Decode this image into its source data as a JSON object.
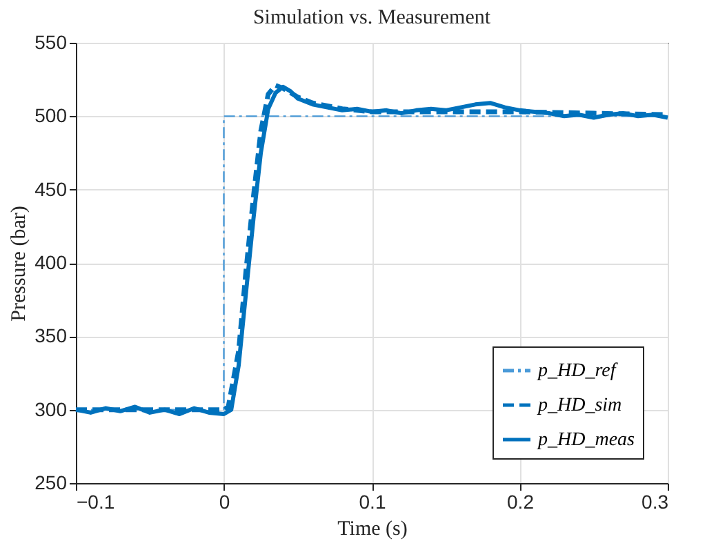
{
  "chart_data": {
    "type": "line",
    "title": "Simulation vs. Measurement",
    "xlabel": "Time (s)",
    "ylabel": "Pressure (bar)",
    "xlim": [
      -0.1,
      0.3
    ],
    "xticks": [
      -0.1,
      0,
      0.1,
      0.2,
      0.3
    ],
    "ylim": [
      250,
      550
    ],
    "yticks": [
      250,
      300,
      350,
      400,
      450,
      500,
      550
    ],
    "grid": true,
    "legend": "bottom right",
    "series": [
      {
        "name": "p_HD_ref",
        "color": "#4a9ad8",
        "line_style": "dashdot",
        "x": [
          -0.1,
          0,
          0,
          0.3
        ],
        "values": [
          300,
          300,
          500,
          500
        ]
      },
      {
        "name": "p_HD_sim",
        "color": "#0072bd",
        "line_style": "dashed",
        "x": [
          -0.1,
          -0.05,
          0,
          0.003,
          0.01,
          0.015,
          0.02,
          0.025,
          0.03,
          0.035,
          0.04,
          0.05,
          0.06,
          0.08,
          0.1,
          0.15,
          0.2,
          0.25,
          0.3
        ],
        "values": [
          300,
          300,
          300,
          302,
          340,
          395,
          445,
          490,
          515,
          521,
          519,
          513,
          509,
          505,
          503,
          503,
          503,
          502,
          501
        ]
      },
      {
        "name": "p_HD_meas",
        "color": "#0072bd",
        "line_style": "solid",
        "x": [
          -0.1,
          -0.09,
          -0.08,
          -0.07,
          -0.06,
          -0.05,
          -0.04,
          -0.03,
          -0.02,
          -0.01,
          0,
          0.005,
          0.01,
          0.015,
          0.02,
          0.025,
          0.03,
          0.035,
          0.04,
          0.045,
          0.05,
          0.06,
          0.07,
          0.08,
          0.09,
          0.1,
          0.11,
          0.12,
          0.13,
          0.14,
          0.15,
          0.16,
          0.17,
          0.18,
          0.19,
          0.2,
          0.21,
          0.22,
          0.23,
          0.24,
          0.25,
          0.26,
          0.27,
          0.28,
          0.29,
          0.3
        ],
        "values": [
          300,
          298,
          301,
          299,
          302,
          298,
          300,
          297,
          301,
          298,
          297,
          300,
          330,
          380,
          430,
          475,
          505,
          516,
          520,
          517,
          512,
          508,
          506,
          504,
          505,
          503,
          504,
          502,
          504,
          505,
          504,
          506,
          508,
          509,
          506,
          504,
          503,
          502,
          500,
          501,
          499,
          501,
          502,
          500,
          501,
          499
        ]
      }
    ]
  }
}
